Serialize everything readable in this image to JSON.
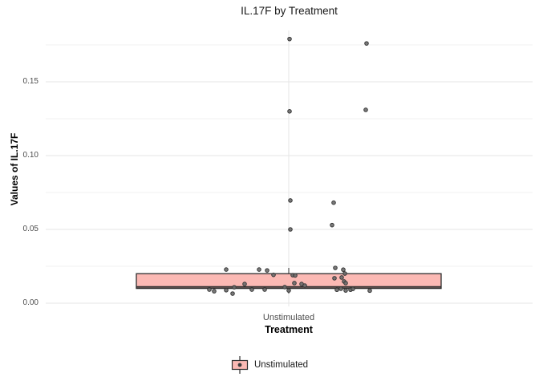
{
  "chart_data": {
    "type": "boxplot",
    "title": "IL.17F by Treatment",
    "xlabel": "Treatment",
    "ylabel": "Values of IL.17F",
    "categories": [
      "Unstimulated"
    ],
    "y_tick_labels": [
      "0.00",
      "0.05",
      "0.10",
      "0.15"
    ],
    "y_tick_values": [
      0.0,
      0.05,
      0.1,
      0.15
    ],
    "y_minor_values": [
      0.025,
      0.075,
      0.125,
      0.175
    ],
    "ylim": [
      -0.002,
      0.185
    ],
    "grid": "major+minor",
    "legend": {
      "position": "bottom",
      "entries": [
        {
          "label": "Unstimulated",
          "fill": "#FBB9B4"
        }
      ]
    },
    "box": {
      "category": "Unstimulated",
      "q1": 0.01,
      "median": 0.011,
      "q3": 0.02,
      "whisker_low": 0.0065,
      "whisker_high": 0.0239,
      "fill": "#FBB9B4",
      "border": "#2e2e2e"
    },
    "points_jitter_dx_value": [
      [
        1,
        0.179
      ],
      [
        97,
        0.176
      ],
      [
        1,
        0.13
      ],
      [
        96,
        0.131
      ],
      [
        2,
        0.0696
      ],
      [
        56,
        0.0681
      ],
      [
        54,
        0.0529
      ],
      [
        2,
        0.05
      ],
      [
        -78,
        0.0228
      ],
      [
        -37,
        0.0228
      ],
      [
        -27,
        0.0222
      ],
      [
        58,
        0.0239
      ],
      [
        68,
        0.0227
      ],
      [
        -19,
        0.0192
      ],
      [
        5,
        0.019
      ],
      [
        8,
        0.0188
      ],
      [
        70,
        0.0201
      ],
      [
        57,
        0.0169
      ],
      [
        66,
        0.0174
      ],
      [
        69,
        0.0147
      ],
      [
        71,
        0.0136
      ],
      [
        7,
        0.0136
      ],
      [
        16,
        0.013
      ],
      [
        -55,
        0.013
      ],
      [
        20,
        0.0119
      ],
      [
        -68,
        0.0108
      ],
      [
        -5,
        0.0109
      ],
      [
        0,
        0.0086
      ],
      [
        -99,
        0.0092
      ],
      [
        -93,
        0.0081
      ],
      [
        -78,
        0.0088
      ],
      [
        -70,
        0.0065
      ],
      [
        -46,
        0.0092
      ],
      [
        -30,
        0.0092
      ],
      [
        60,
        0.0091
      ],
      [
        65,
        0.0098
      ],
      [
        71,
        0.0086
      ],
      [
        77,
        0.0091
      ],
      [
        80,
        0.0097
      ],
      [
        101,
        0.0085
      ]
    ],
    "colors": {
      "background": "#ffffff",
      "grid_major": "#e5e5e5",
      "grid_minor": "#f2f2f2",
      "point_fill": "#6b6b6b",
      "point_stroke": "#383838",
      "box_fill": "#FBB9B4",
      "box_border": "#2e2e2e",
      "tick_text": "#4d4d4d",
      "title_text": "#1a1a1a"
    }
  }
}
